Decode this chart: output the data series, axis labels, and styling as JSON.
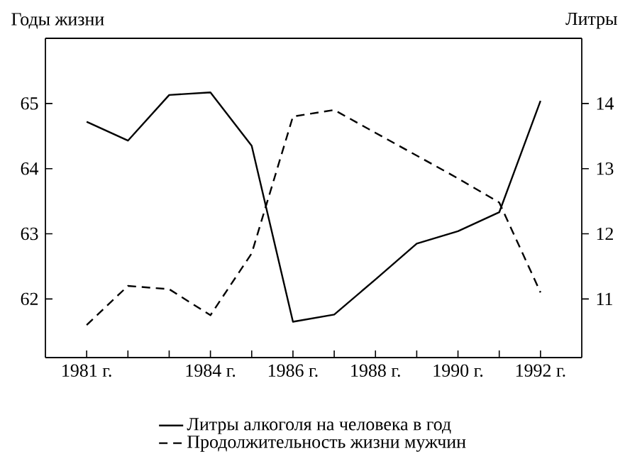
{
  "chart_data": {
    "type": "line",
    "ylabel": "Годы жизни",
    "y2label": "Литры",
    "x": [
      1981,
      1982,
      1983,
      1984,
      1985,
      1986,
      1987,
      1988,
      1989,
      1990,
      1991,
      1992
    ],
    "series": [
      {
        "name": "Литры алкоголя на человека в год",
        "color": "#000000",
        "line_style": "solid",
        "axis": "y2",
        "values": [
          13.72,
          13.43,
          14.13,
          14.17,
          13.35,
          10.65,
          10.76,
          11.3,
          11.85,
          12.04,
          12.33,
          14.04
        ]
      },
      {
        "name": "Продолжительность жизни мужчин",
        "color": "#000000",
        "line_style": "dashed",
        "axis": "y",
        "values": [
          61.6,
          62.2,
          62.15,
          61.75,
          62.7,
          64.8,
          64.9,
          64.55,
          64.2,
          63.85,
          63.48,
          62.1
        ]
      }
    ],
    "xlim": [
      1980,
      1993
    ],
    "xticks": [
      {
        "value": 1981,
        "label": "1981 г."
      },
      {
        "value": 1982,
        "label": null
      },
      {
        "value": 1983,
        "label": null
      },
      {
        "value": 1984,
        "label": "1984 г."
      },
      {
        "value": 1985,
        "label": null
      },
      {
        "value": 1986,
        "label": "1986 г."
      },
      {
        "value": 1987,
        "label": null
      },
      {
        "value": 1988,
        "label": "1988 г."
      },
      {
        "value": 1989,
        "label": null
      },
      {
        "value": 1990,
        "label": "1990 г."
      },
      {
        "value": 1991,
        "label": null
      },
      {
        "value": 1992,
        "label": "1992 г."
      }
    ],
    "ylim": [
      61.1,
      66.0
    ],
    "yticks": [
      62,
      63,
      64,
      65
    ],
    "y2lim": [
      10.1,
      15.0
    ],
    "y2ticks": [
      11,
      12,
      13,
      14
    ],
    "grid": false,
    "legend": "bottom",
    "marker": "none"
  }
}
